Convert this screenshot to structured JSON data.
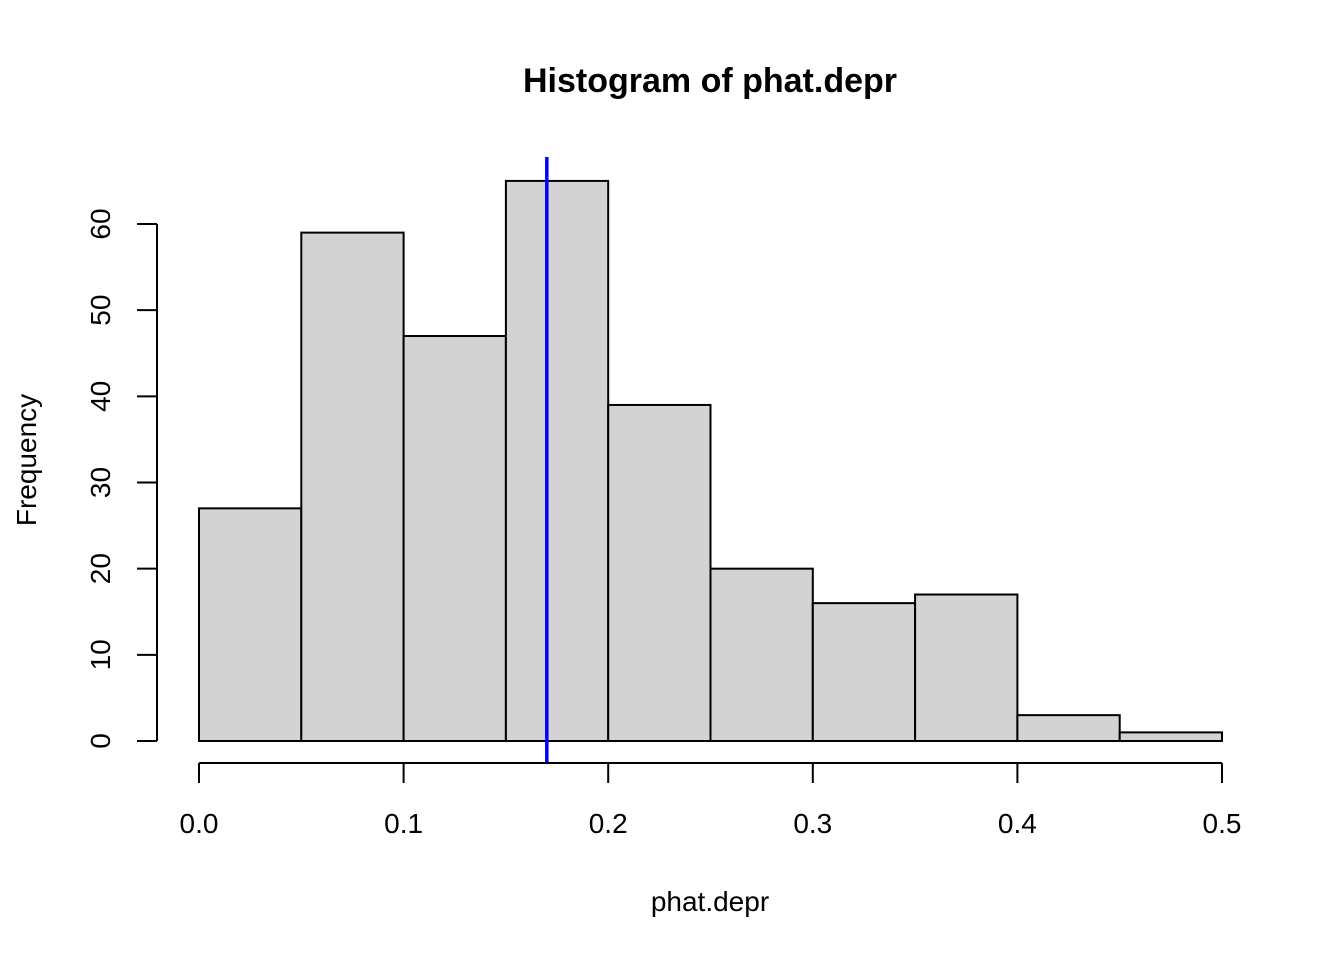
{
  "chart_data": {
    "type": "bar",
    "title": "Histogram of phat.depr",
    "xlabel": "phat.depr",
    "ylabel": "Frequency",
    "bins": [
      {
        "from": 0.0,
        "to": 0.05,
        "count": 27
      },
      {
        "from": 0.05,
        "to": 0.1,
        "count": 59
      },
      {
        "from": 0.1,
        "to": 0.15,
        "count": 47
      },
      {
        "from": 0.15,
        "to": 0.2,
        "count": 65
      },
      {
        "from": 0.2,
        "to": 0.25,
        "count": 39
      },
      {
        "from": 0.25,
        "to": 0.3,
        "count": 20
      },
      {
        "from": 0.3,
        "to": 0.35,
        "count": 16
      },
      {
        "from": 0.35,
        "to": 0.4,
        "count": 17
      },
      {
        "from": 0.4,
        "to": 0.45,
        "count": 3
      },
      {
        "from": 0.45,
        "to": 0.5,
        "count": 1
      }
    ],
    "x_ticks": [
      {
        "value": 0.0,
        "label": "0.0"
      },
      {
        "value": 0.1,
        "label": "0.1"
      },
      {
        "value": 0.2,
        "label": "0.2"
      },
      {
        "value": 0.3,
        "label": "0.3"
      },
      {
        "value": 0.4,
        "label": "0.4"
      },
      {
        "value": 0.5,
        "label": "0.5"
      }
    ],
    "y_ticks": [
      {
        "value": 0,
        "label": "0"
      },
      {
        "value": 10,
        "label": "10"
      },
      {
        "value": 20,
        "label": "20"
      },
      {
        "value": 30,
        "label": "30"
      },
      {
        "value": 40,
        "label": "40"
      },
      {
        "value": 50,
        "label": "50"
      },
      {
        "value": 60,
        "label": "60"
      }
    ],
    "xlim": [
      0.0,
      0.5
    ],
    "ylim": [
      0,
      65
    ],
    "reference_line": {
      "x": 0.17,
      "color": "#0000ff"
    },
    "bar_color": "#d3d3d3",
    "grid": false
  }
}
